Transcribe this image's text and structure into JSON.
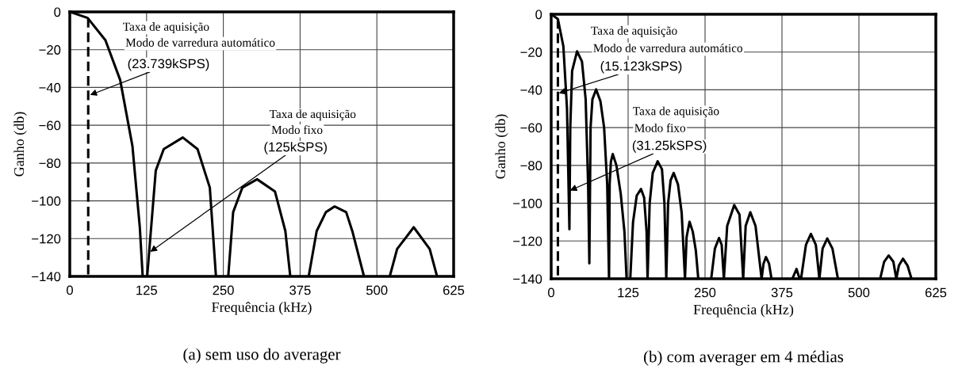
{
  "chart_data": [
    {
      "type": "line",
      "title": "(a) sem uso do averager",
      "xlabel": "Frequência (kHz)",
      "ylabel": "Ganho (db)",
      "xlim": [
        0,
        625
      ],
      "xticks": [
        0,
        125,
        250,
        375,
        500,
        625
      ],
      "ylim": [
        -140,
        0
      ],
      "yticks": [
        0,
        -20,
        -40,
        -60,
        -80,
        -100,
        -120,
        -140
      ],
      "grid": true,
      "legend": false,
      "series": [
        {
          "color": "#000000",
          "line_style": "solid",
          "x": [
            0,
            29,
            58,
            82,
            102,
            114,
            118.7,
            null,
            126,
            140,
            153,
            184,
            208,
            228,
            238,
            null,
            258,
            266,
            281,
            305,
            334,
            351,
            359,
            null,
            389,
            402,
            417,
            431,
            450,
            460,
            479,
            null,
            521,
            533,
            560,
            586,
            598
          ],
          "values": [
            0,
            -3.2,
            -15,
            -36,
            -71,
            -114,
            -140,
            null,
            -140,
            -84,
            -72.6,
            -66.5,
            -72.6,
            -93,
            -140,
            null,
            -140,
            -106,
            -93,
            -88.6,
            -95,
            -116,
            -140,
            null,
            -140,
            -116,
            -106,
            -103,
            -106,
            -116,
            -140,
            null,
            -140,
            -125.5,
            -114,
            -125.5,
            -140
          ]
        },
        {
          "color": "#000000",
          "line_style": "dashed",
          "x": [
            30,
            30
          ],
          "values": [
            -3.2,
            -140
          ]
        }
      ],
      "annotations": [
        "Taxa de aquisição",
        "Modo de varredura automático",
        {
          "text": "(23.739kSPS)",
          "x": 33,
          "y": -44
        },
        "Taxa de aquisição",
        "Modo fixo",
        {
          "text": "(125kSPS)",
          "x": 131,
          "y": -127
        }
      ]
    },
    {
      "type": "line",
      "title": "(b) com averager em 4 médias",
      "xlabel": "Frequência (kHz)",
      "ylabel": "Ganho (db)",
      "xlim": [
        0,
        625
      ],
      "xticks": [
        0,
        125,
        250,
        375,
        500,
        625
      ],
      "ylim": [
        -140,
        0
      ],
      "yticks": [
        0,
        -20,
        -40,
        -60,
        -80,
        -100,
        -120,
        -140
      ],
      "grid": true,
      "legend": false,
      "series": [
        {
          "color": "#000000",
          "line_style": "solid",
          "x": [
            0,
            10.9,
            19.8,
            25.7,
            29.6,
            31,
            34,
            42,
            50,
            56,
            60,
            62,
            64,
            67,
            73,
            80,
            86,
            91,
            94,
            95,
            97,
            100,
            106,
            113,
            119,
            122.5,
            null,
            128.5,
            133,
            139,
            146,
            151,
            155,
            156.6,
            160,
            165,
            173,
            180,
            184,
            187,
            190,
            194,
            199,
            206,
            212,
            217.4,
            220,
            224.8,
            230,
            235,
            239,
            null,
            260,
            266,
            272.7,
            277,
            280.6,
            286,
            297.4,
            306,
            312,
            316,
            323.6,
            332,
            341.9,
            345,
            349,
            354,
            358,
            null,
            391.8,
            398.7,
            403.6,
            null,
            406,
            414,
            422,
            430,
            435.8,
            441,
            448.6,
            457,
            465.9,
            null,
            534.6,
            541,
            548.4,
            556,
            560.8,
            565,
            571.6,
            579,
            585.5
          ],
          "values": [
            0,
            -2.5,
            -17,
            -50,
            -113.8,
            -60,
            -30,
            -19.6,
            -25,
            -45,
            -90,
            -131.8,
            -60,
            -45,
            -39.8,
            -46,
            -60,
            -90,
            -140,
            -90,
            -78,
            -74,
            -80,
            -95,
            -115,
            -140,
            null,
            -140,
            -110,
            -96,
            -92.5,
            -97,
            -115,
            -140,
            -100,
            -84,
            -77.8,
            -82,
            -100,
            -140,
            -100,
            -88,
            -84,
            -90,
            -105,
            -140,
            -118,
            -109.8,
            -115,
            -125,
            -140,
            null,
            -140,
            -124,
            -118.4,
            -122,
            -140,
            -112,
            -101,
            -106,
            -140,
            -112,
            -104.8,
            -112,
            -140,
            -132,
            -128.5,
            -132,
            -140,
            null,
            -140,
            -134.8,
            -140,
            null,
            -140,
            -122,
            -116.3,
            -122,
            -140,
            -124,
            -118.7,
            -124,
            -140,
            null,
            -140,
            -131,
            -127.7,
            -131,
            -140,
            -133,
            -129.4,
            -133,
            -140
          ]
        },
        {
          "color": "#000000",
          "line_style": "dashed",
          "x": [
            10.9,
            10.9
          ],
          "values": [
            -2.5,
            -140
          ]
        }
      ],
      "annotations": [
        "Taxa de aquisição",
        "Modo de varredura automático",
        {
          "text": "(15.123kSPS)",
          "x": 12.4,
          "y": -41.8
        },
        "Taxa de aquisição",
        "Modo fixo",
        {
          "text": "(31.25kSPS)",
          "x": 30.6,
          "y": -93.3
        }
      ]
    }
  ]
}
